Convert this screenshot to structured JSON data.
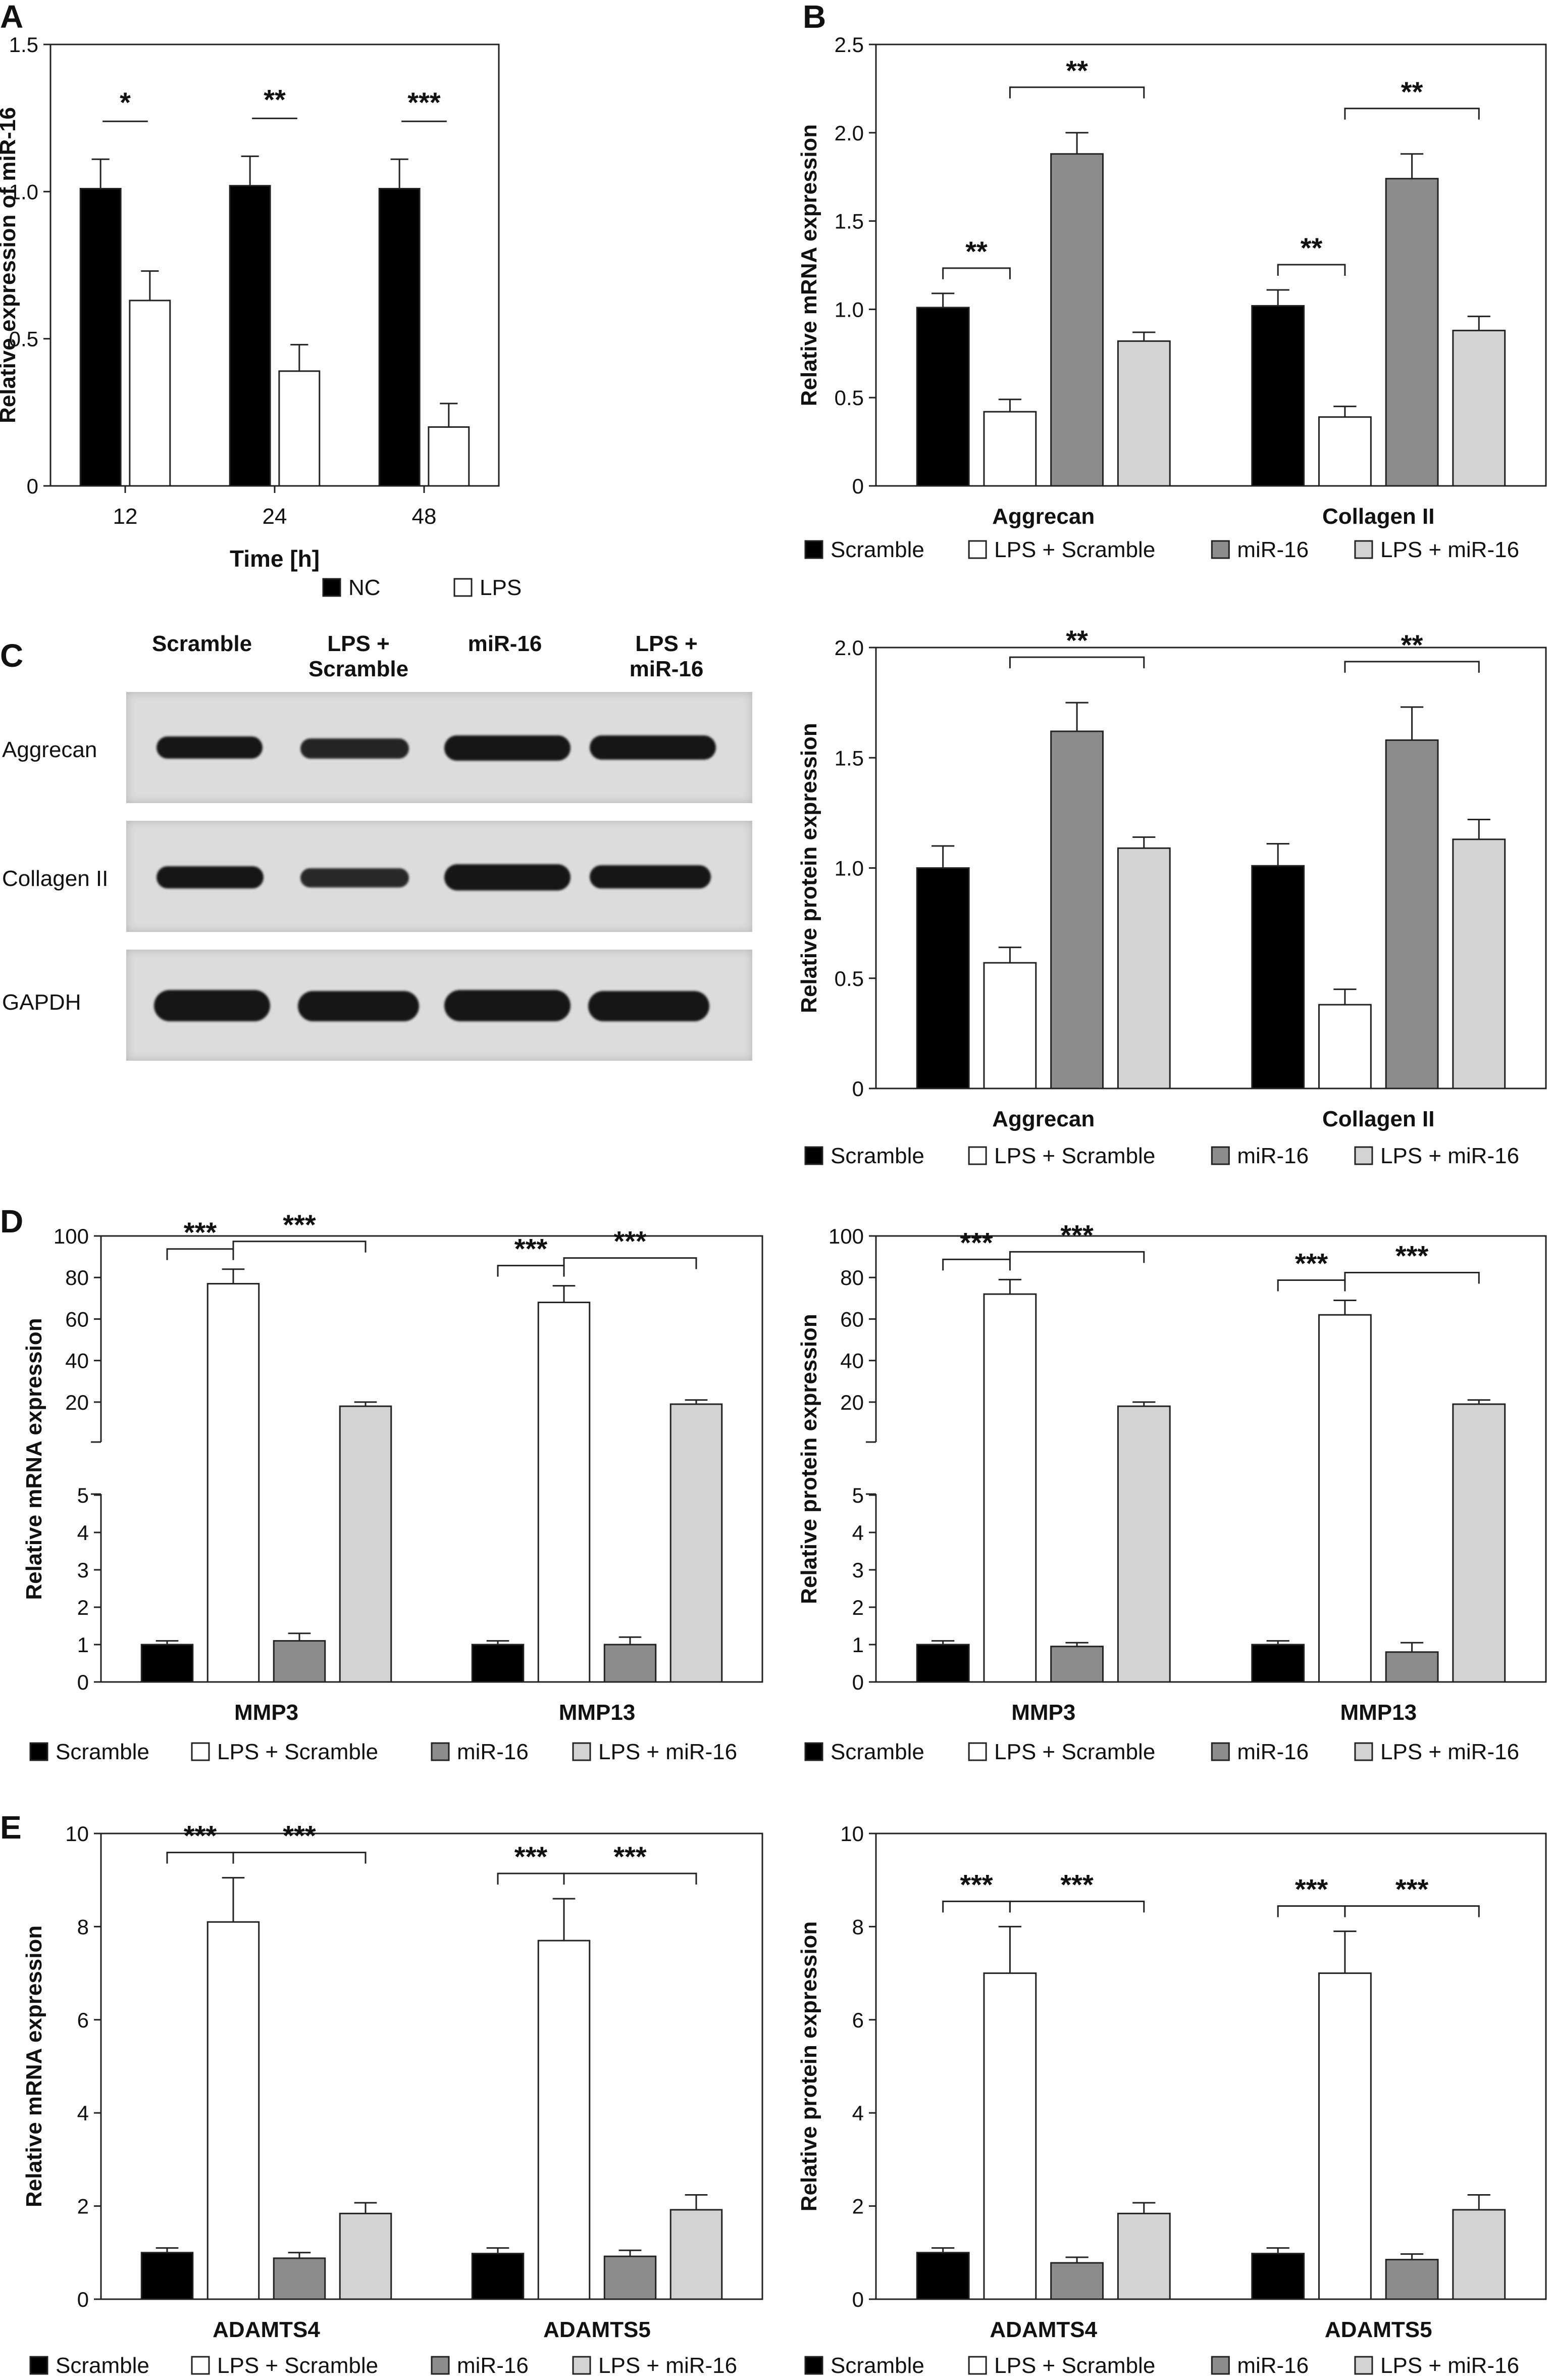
{
  "colors": {
    "scramble": "#000000",
    "lps_scramble": "#ffffff",
    "mir16": "#8c8c8c",
    "lps_mir16": "#d3d3d3",
    "nc": "#000000",
    "lps": "#ffffff"
  },
  "legend_4": [
    "Scramble",
    "LPS + Scramble",
    "miR-16",
    "LPS + miR-16"
  ],
  "legend_2": [
    "NC",
    "LPS"
  ],
  "western_blot": {
    "panel_letter": "C",
    "lanes": [
      "Scramble",
      "LPS +\nScramble",
      "miR-16",
      "LPS +\nmiR-16"
    ],
    "rows": [
      "Aggrecan",
      "Collagen II",
      "GAPDH"
    ]
  },
  "chart_data": [
    {
      "id": "A",
      "panel_letter": "A",
      "type": "bar",
      "categories": [
        "12",
        "24",
        "48"
      ],
      "series": [
        {
          "name": "NC",
          "values": [
            1.01,
            1.02,
            1.01
          ],
          "errors": [
            0.1,
            0.1,
            0.1
          ]
        },
        {
          "name": "LPS",
          "values": [
            0.63,
            0.39,
            0.2
          ],
          "errors": [
            0.1,
            0.09,
            0.08
          ]
        }
      ],
      "xlabel": "Time [h]",
      "ylabel": "Relative expression of miR-16",
      "ylim": [
        0,
        1.5
      ],
      "yticks": [
        "0",
        "0.5",
        "1.0",
        "1.5"
      ],
      "significance": [
        {
          "category": 0,
          "from": 0,
          "to": 1,
          "label": "*"
        },
        {
          "category": 1,
          "from": 0,
          "to": 1,
          "label": "**"
        },
        {
          "category": 2,
          "from": 0,
          "to": 1,
          "label": "***"
        }
      ],
      "legend": [
        "NC",
        "LPS"
      ]
    },
    {
      "id": "B",
      "panel_letter": "B",
      "type": "bar",
      "categories": [
        "Aggrecan",
        "Collagen II"
      ],
      "series": [
        {
          "name": "Scramble",
          "values": [
            1.01,
            1.02
          ],
          "errors": [
            0.08,
            0.09
          ]
        },
        {
          "name": "LPS + Scramble",
          "values": [
            0.42,
            0.39
          ],
          "errors": [
            0.07,
            0.06
          ]
        },
        {
          "name": "miR-16",
          "values": [
            1.88,
            1.74
          ],
          "errors": [
            0.12,
            0.14
          ]
        },
        {
          "name": "LPS + miR-16",
          "values": [
            0.82,
            0.88
          ],
          "errors": [
            0.05,
            0.08
          ]
        }
      ],
      "xlabel": "",
      "ylabel": "Relative mRNA expression",
      "ylim": [
        0,
        2.5
      ],
      "yticks": [
        "0",
        "0.5",
        "1.0",
        "1.5",
        "2.0",
        "2.5"
      ],
      "significance": [
        {
          "category": 0,
          "from": 0,
          "to": 1,
          "label": "**"
        },
        {
          "category": 0,
          "from": 1,
          "to": 3,
          "label": "**",
          "high": true
        },
        {
          "category": 1,
          "from": 0,
          "to": 1,
          "label": "**"
        },
        {
          "category": 1,
          "from": 1,
          "to": 3,
          "label": "**",
          "high": true
        }
      ]
    },
    {
      "id": "C",
      "panel_letter": "",
      "type": "bar",
      "categories": [
        "Aggrecan",
        "Collagen II"
      ],
      "series": [
        {
          "name": "Scramble",
          "values": [
            1.0,
            1.01
          ],
          "errors": [
            0.1,
            0.1
          ]
        },
        {
          "name": "LPS + Scramble",
          "values": [
            0.57,
            0.38
          ],
          "errors": [
            0.07,
            0.07
          ]
        },
        {
          "name": "miR-16",
          "values": [
            1.62,
            1.58
          ],
          "errors": [
            0.13,
            0.15
          ]
        },
        {
          "name": "LPS + miR-16",
          "values": [
            1.09,
            1.13
          ],
          "errors": [
            0.05,
            0.09
          ]
        }
      ],
      "xlabel": "",
      "ylabel": "Relative protein expression",
      "ylim": [
        0,
        2.0
      ],
      "yticks": [
        "0",
        "0.5",
        "1.0",
        "1.5",
        "2.0"
      ],
      "significance": [
        {
          "category": 0,
          "from": 1,
          "to": 3,
          "label": "**",
          "high": true
        },
        {
          "category": 1,
          "from": 1,
          "to": 3,
          "label": "**",
          "high": true
        }
      ]
    },
    {
      "id": "D1",
      "panel_letter": "D",
      "type": "bar",
      "broken_axis": true,
      "categories": [
        "MMP3",
        "MMP13"
      ],
      "series": [
        {
          "name": "Scramble",
          "values": [
            1.0,
            1.0
          ],
          "errors": [
            0.1,
            0.1
          ]
        },
        {
          "name": "LPS + Scramble",
          "values": [
            77,
            68
          ],
          "errors": [
            7,
            8
          ]
        },
        {
          "name": "miR-16",
          "values": [
            1.1,
            1.0
          ],
          "errors": [
            0.2,
            0.2
          ]
        },
        {
          "name": "LPS + miR-16",
          "values": [
            18,
            19
          ],
          "errors": [
            2,
            2
          ]
        }
      ],
      "xlabel": "",
      "ylabel": "Relative mRNA expression",
      "lower_range": [
        0,
        5
      ],
      "upper_range": [
        10,
        100
      ],
      "yticks_lower": [
        "0",
        "1",
        "2",
        "3",
        "4",
        "5"
      ],
      "yticks_upper": [
        "20",
        "40",
        "60",
        "80",
        "100"
      ],
      "significance": [
        {
          "category": 0,
          "from": 0,
          "to": 1,
          "label": "***"
        },
        {
          "category": 0,
          "from": 1,
          "to": 3,
          "label": "***"
        },
        {
          "category": 1,
          "from": 0,
          "to": 1,
          "label": "***"
        },
        {
          "category": 1,
          "from": 1,
          "to": 3,
          "label": "***"
        }
      ]
    },
    {
      "id": "D2",
      "panel_letter": "",
      "type": "bar",
      "broken_axis": true,
      "categories": [
        "MMP3",
        "MMP13"
      ],
      "series": [
        {
          "name": "Scramble",
          "values": [
            1.0,
            1.0
          ],
          "errors": [
            0.1,
            0.1
          ]
        },
        {
          "name": "LPS + Scramble",
          "values": [
            72,
            62
          ],
          "errors": [
            7,
            7
          ]
        },
        {
          "name": "miR-16",
          "values": [
            0.95,
            0.8
          ],
          "errors": [
            0.1,
            0.25
          ]
        },
        {
          "name": "LPS + miR-16",
          "values": [
            18,
            19
          ],
          "errors": [
            2,
            2
          ]
        }
      ],
      "xlabel": "",
      "ylabel": "Relative protein expression",
      "lower_range": [
        0,
        5
      ],
      "upper_range": [
        10,
        100
      ],
      "yticks_lower": [
        "0",
        "1",
        "2",
        "3",
        "4",
        "5"
      ],
      "yticks_upper": [
        "20",
        "40",
        "60",
        "80",
        "100"
      ],
      "significance": [
        {
          "category": 0,
          "from": 0,
          "to": 1,
          "label": "***"
        },
        {
          "category": 0,
          "from": 1,
          "to": 3,
          "label": "***"
        },
        {
          "category": 1,
          "from": 0,
          "to": 1,
          "label": "***"
        },
        {
          "category": 1,
          "from": 1,
          "to": 3,
          "label": "***"
        }
      ]
    },
    {
      "id": "E1",
      "panel_letter": "E",
      "type": "bar",
      "categories": [
        "ADAMTS4",
        "ADAMTS5"
      ],
      "series": [
        {
          "name": "Scramble",
          "values": [
            1.0,
            0.98
          ],
          "errors": [
            0.1,
            0.12
          ]
        },
        {
          "name": "LPS + Scramble",
          "values": [
            8.1,
            7.7
          ],
          "errors": [
            0.95,
            0.9
          ]
        },
        {
          "name": "miR-16",
          "values": [
            0.88,
            0.92
          ],
          "errors": [
            0.12,
            0.13
          ]
        },
        {
          "name": "LPS + miR-16",
          "values": [
            1.84,
            1.92
          ],
          "errors": [
            0.23,
            0.32
          ]
        }
      ],
      "xlabel": "",
      "ylabel": "Relative mRNA expression",
      "ylim": [
        0,
        10
      ],
      "yticks": [
        "0",
        "2",
        "4",
        "6",
        "8",
        "10"
      ],
      "significance": [
        {
          "category": 0,
          "from": 0,
          "to": 1,
          "label": "***"
        },
        {
          "category": 0,
          "from": 1,
          "to": 3,
          "label": "***"
        },
        {
          "category": 1,
          "from": 0,
          "to": 1,
          "label": "***"
        },
        {
          "category": 1,
          "from": 1,
          "to": 3,
          "label": "***"
        }
      ]
    },
    {
      "id": "E2",
      "panel_letter": "",
      "type": "bar",
      "categories": [
        "ADAMTS4",
        "ADAMTS5"
      ],
      "series": [
        {
          "name": "Scramble",
          "values": [
            1.0,
            0.98
          ],
          "errors": [
            0.1,
            0.12
          ]
        },
        {
          "name": "LPS + Scramble",
          "values": [
            7.0,
            7.0
          ],
          "errors": [
            1.0,
            0.9
          ]
        },
        {
          "name": "miR-16",
          "values": [
            0.78,
            0.85
          ],
          "errors": [
            0.12,
            0.12
          ]
        },
        {
          "name": "LPS + miR-16",
          "values": [
            1.84,
            1.92
          ],
          "errors": [
            0.23,
            0.32
          ]
        }
      ],
      "xlabel": "",
      "ylabel": "Relative protein expression",
      "ylim": [
        0,
        10
      ],
      "yticks": [
        "0",
        "2",
        "4",
        "6",
        "8",
        "10"
      ],
      "significance": [
        {
          "category": 0,
          "from": 0,
          "to": 1,
          "label": "***"
        },
        {
          "category": 0,
          "from": 1,
          "to": 3,
          "label": "***"
        },
        {
          "category": 1,
          "from": 0,
          "to": 1,
          "label": "***"
        },
        {
          "category": 1,
          "from": 1,
          "to": 3,
          "label": "***"
        }
      ]
    }
  ]
}
